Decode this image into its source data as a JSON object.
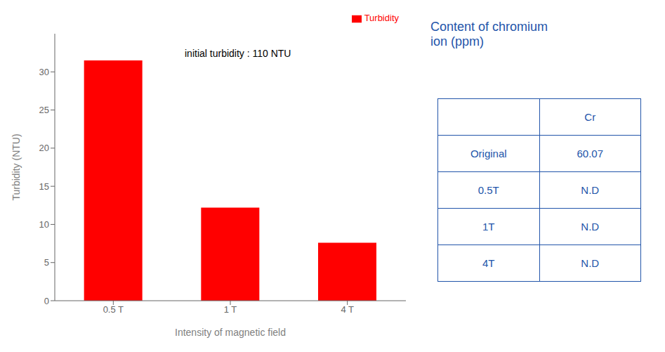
{
  "chart_data": {
    "type": "bar",
    "categories": [
      "0.5 T",
      "1 T",
      "4 T"
    ],
    "series": [
      {
        "name": "Turbidity",
        "color": "#ff0000",
        "values": [
          31.5,
          12.2,
          7.6
        ]
      }
    ],
    "xlabel": "Intensity of magnetic field",
    "ylabel": "Turbidity (NTU)",
    "ylim": [
      0,
      35
    ],
    "yticks": [
      0,
      5,
      10,
      15,
      20,
      25,
      30
    ],
    "annotation": "initial turbidity : 110 NTU",
    "legend": "upper right",
    "table": {
      "title": "Content of chromium\nion (ppm)",
      "header": [
        null,
        "Cr"
      ],
      "rows": [
        [
          "Original",
          "60.07"
        ],
        [
          "0.5T",
          "N.D"
        ],
        [
          "1T",
          "N.D"
        ],
        [
          "4T",
          "N.D"
        ]
      ],
      "color": "#2255aa"
    }
  }
}
